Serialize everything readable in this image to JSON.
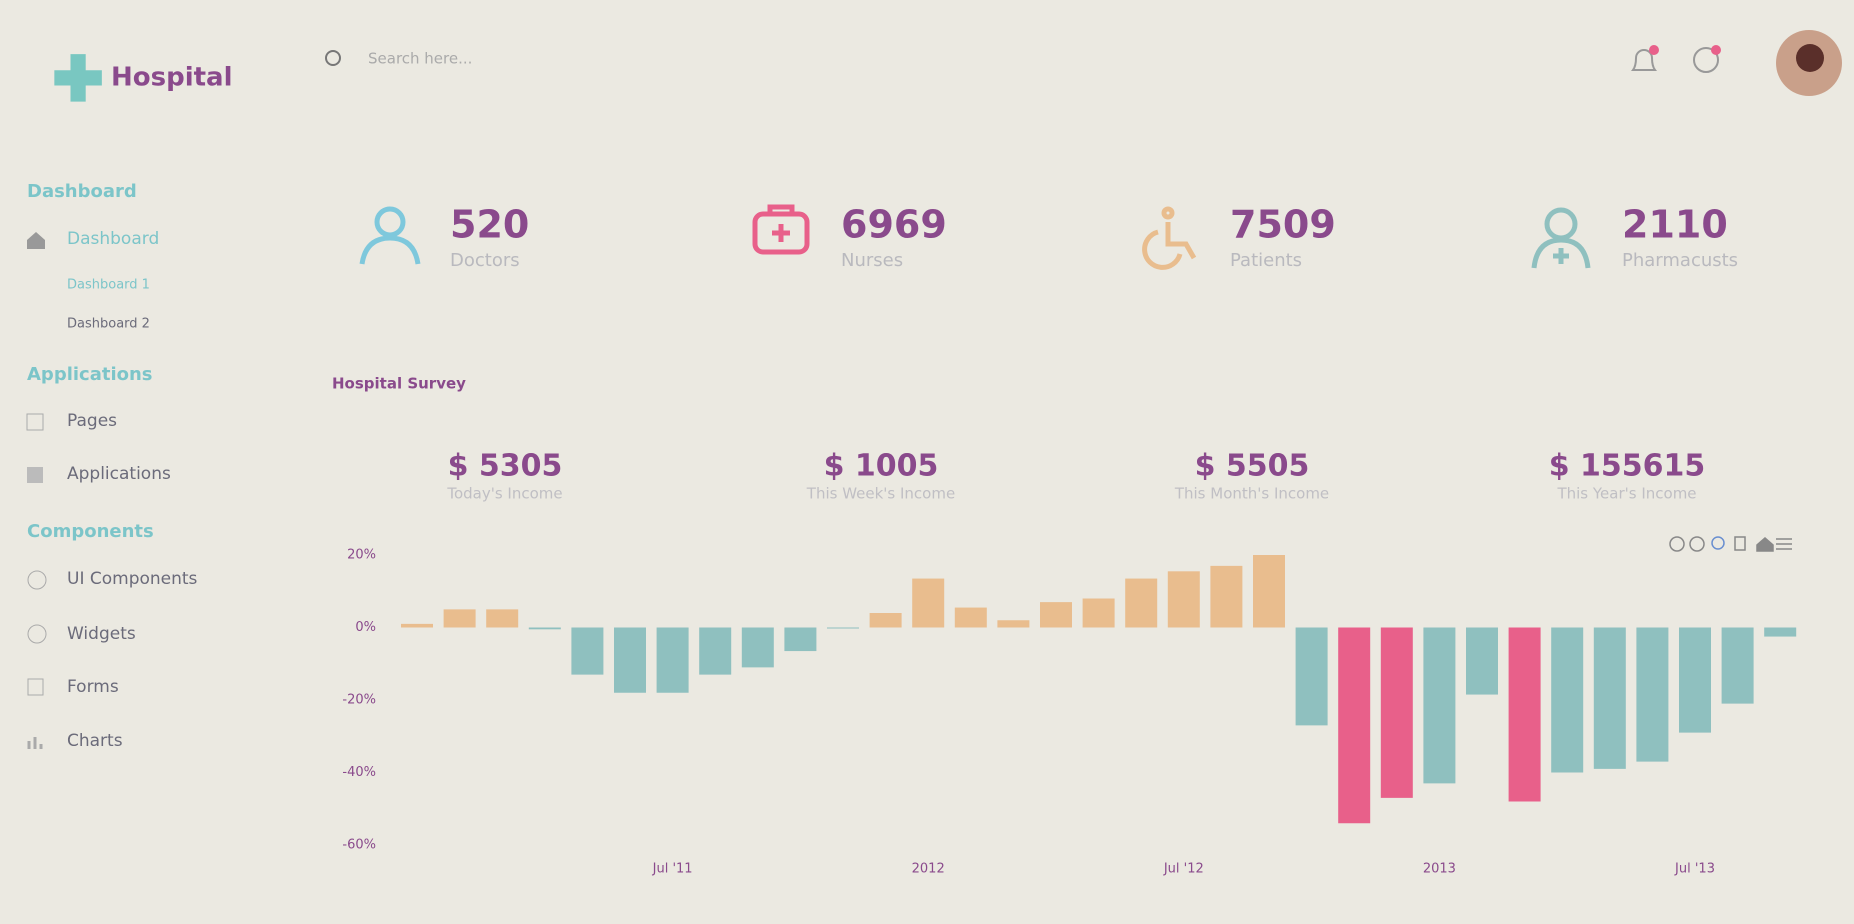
{
  "header": {
    "brand": "Hospital",
    "search_placeholder": "Search here..."
  },
  "sidebar": {
    "sections": [
      {
        "title": "Dashboard",
        "items": [
          "Dashboard",
          "Dashboard 1",
          "Dashboard 2"
        ]
      },
      {
        "title": "Applications",
        "items": [
          "Pages",
          "Applications"
        ]
      },
      {
        "title": "Components",
        "items": [
          "UI Components",
          "Widgets",
          "Forms",
          "Charts"
        ]
      }
    ]
  },
  "stats": [
    {
      "value": "520",
      "label": "Doctors"
    },
    {
      "value": "6969",
      "label": "Nurses"
    },
    {
      "value": "7509",
      "label": "Patients"
    },
    {
      "value": "2110",
      "label": "Pharmacusts"
    }
  ],
  "survey": {
    "title": "Hospital Survey",
    "incomes": [
      {
        "value": "$ 5305",
        "label": "Today's Income"
      },
      {
        "value": "$ 1005",
        "label": "This Week's Income"
      },
      {
        "value": "$ 5505",
        "label": "This Month's Income"
      },
      {
        "value": "$ 155615",
        "label": "This Year's Income"
      }
    ]
  },
  "chart_data": {
    "type": "bar",
    "categories": [
      null,
      null,
      null,
      null,
      null,
      null,
      "Jul '11",
      null,
      null,
      null,
      null,
      null,
      "2012",
      null,
      null,
      null,
      null,
      null,
      "Jul '12",
      null,
      null,
      null,
      null,
      null,
      "2013",
      null,
      null,
      null,
      null,
      null,
      "Jul '13",
      null,
      null
    ],
    "values": [
      1,
      5,
      5,
      -0.5,
      -13,
      -18,
      -18,
      -13,
      -11,
      -6.5,
      0,
      4,
      13.5,
      5.5,
      2,
      7,
      8,
      13.5,
      15.5,
      17,
      20,
      -27,
      -54,
      -47,
      -43,
      -18.5,
      -48,
      -40,
      -39,
      -37,
      -29,
      -21,
      -2.5
    ],
    "colors": [
      "#e9bd8e",
      "#e9bd8e",
      "#e9bd8e",
      "#8fc0bf",
      "#8fc0bf",
      "#8fc0bf",
      "#8fc0bf",
      "#8fc0bf",
      "#8fc0bf",
      "#8fc0bf",
      "#8fc0bf",
      "#e9bd8e",
      "#e9bd8e",
      "#e9bd8e",
      "#e9bd8e",
      "#e9bd8e",
      "#e9bd8e",
      "#e9bd8e",
      "#e9bd8e",
      "#e9bd8e",
      "#e9bd8e",
      "#8fc0bf",
      "#e8608a",
      "#e8608a",
      "#8fc0bf",
      "#8fc0bf",
      "#e8608a",
      "#8fc0bf",
      "#8fc0bf",
      "#8fc0bf",
      "#8fc0bf",
      "#8fc0bf",
      "#8fc0bf"
    ],
    "ylim": [
      -60,
      20
    ],
    "yticks": [
      {
        "value": 20,
        "label": "20%"
      },
      {
        "value": 0,
        "label": "0%"
      },
      {
        "value": -20,
        "label": "-20%"
      },
      {
        "value": -40,
        "label": "-40%"
      },
      {
        "value": -60,
        "label": "-60%"
      }
    ],
    "grid": false
  }
}
